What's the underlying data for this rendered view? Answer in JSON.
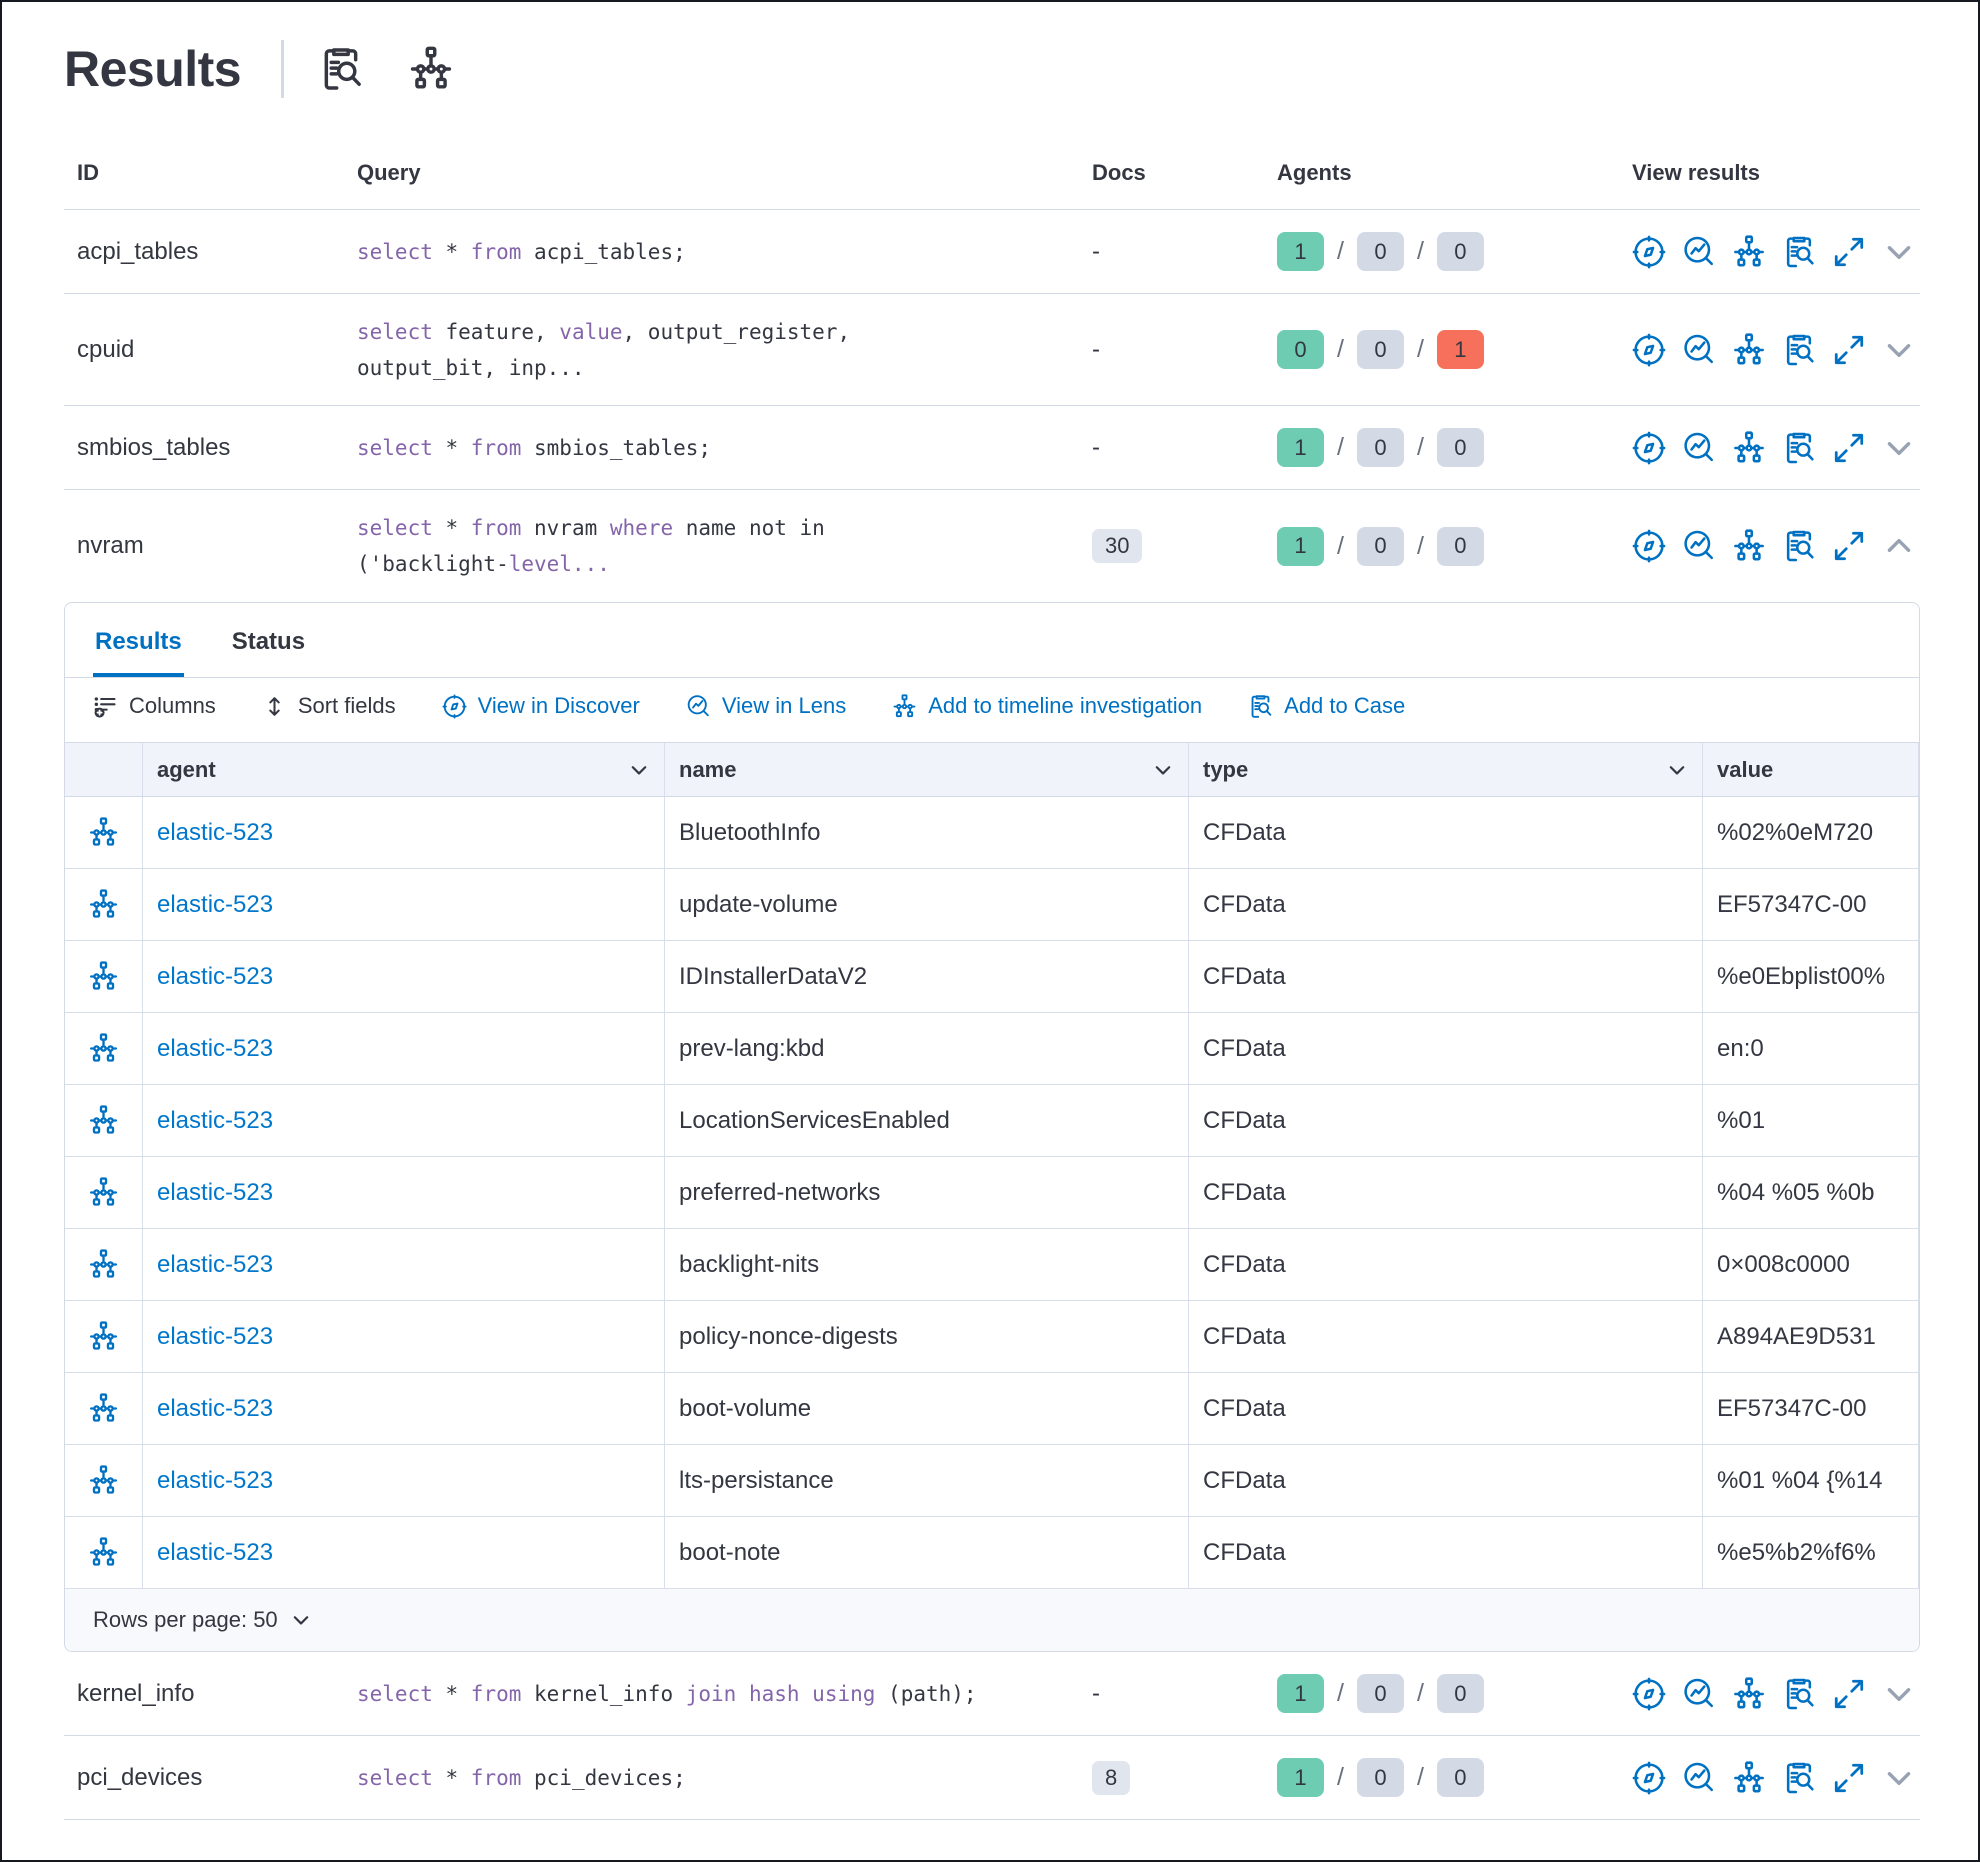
{
  "page": {
    "title": "Results"
  },
  "header_icons": {
    "inspect": "inspect-clipboard-icon",
    "timeline": "timeline-icon"
  },
  "results_table": {
    "columns": {
      "id": "ID",
      "query": "Query",
      "docs": "Docs",
      "agents": "Agents",
      "view_results": "View results"
    },
    "view_icons": [
      "discover-icon",
      "lens-icon",
      "timeline-icon",
      "add-to-case-icon",
      "expand-icon"
    ],
    "rows": [
      {
        "id": "acpi_tables",
        "two_line": false,
        "expanded": false,
        "docs": "-",
        "docs_badge": false,
        "query": [
          {
            "t": "select",
            "k": true
          },
          {
            "t": " * ",
            "k": false
          },
          {
            "t": "from",
            "k": true
          },
          {
            "t": " acpi_tables;",
            "k": false
          }
        ],
        "agents": [
          {
            "value": "1",
            "color": "green"
          },
          {
            "value": "0",
            "color": "gray"
          },
          {
            "value": "0",
            "color": "gray"
          }
        ]
      },
      {
        "id": "cpuid",
        "two_line": true,
        "expanded": false,
        "docs": "-",
        "docs_badge": false,
        "query": [
          {
            "t": "select",
            "k": true
          },
          {
            "t": " feature, ",
            "k": false
          },
          {
            "t": "value",
            "k": true
          },
          {
            "t": ", output_register,",
            "k": false
          },
          {
            "t": "\n",
            "k": false
          },
          {
            "t": "output_bit, inp...",
            "k": false
          }
        ],
        "agents": [
          {
            "value": "0",
            "color": "green"
          },
          {
            "value": "0",
            "color": "gray"
          },
          {
            "value": "1",
            "color": "red"
          }
        ]
      },
      {
        "id": "smbios_tables",
        "two_line": false,
        "expanded": false,
        "docs": "-",
        "docs_badge": false,
        "query": [
          {
            "t": "select",
            "k": true
          },
          {
            "t": " * ",
            "k": false
          },
          {
            "t": "from",
            "k": true
          },
          {
            "t": " smbios_tables;",
            "k": false
          }
        ],
        "agents": [
          {
            "value": "1",
            "color": "green"
          },
          {
            "value": "0",
            "color": "gray"
          },
          {
            "value": "0",
            "color": "gray"
          }
        ]
      },
      {
        "id": "nvram",
        "two_line": true,
        "expanded": true,
        "docs": "30",
        "docs_badge": true,
        "query": [
          {
            "t": "select",
            "k": true
          },
          {
            "t": " * ",
            "k": false
          },
          {
            "t": "from",
            "k": true
          },
          {
            "t": " nvram ",
            "k": false
          },
          {
            "t": "where",
            "k": true
          },
          {
            "t": " name not in",
            "k": false
          },
          {
            "t": "\n",
            "k": false
          },
          {
            "t": "('backlight-",
            "k": false
          },
          {
            "t": "level...",
            "k": true
          }
        ],
        "agents": [
          {
            "value": "1",
            "color": "green"
          },
          {
            "value": "0",
            "color": "gray"
          },
          {
            "value": "0",
            "color": "gray"
          }
        ]
      },
      {
        "id": "kernel_info",
        "two_line": false,
        "expanded": false,
        "docs": "-",
        "docs_badge": false,
        "query": [
          {
            "t": "select",
            "k": true
          },
          {
            "t": " * ",
            "k": false
          },
          {
            "t": "from",
            "k": true
          },
          {
            "t": " kernel_info ",
            "k": false
          },
          {
            "t": "join hash using",
            "k": true
          },
          {
            "t": " (path);",
            "k": false
          }
        ],
        "agents": [
          {
            "value": "1",
            "color": "green"
          },
          {
            "value": "0",
            "color": "gray"
          },
          {
            "value": "0",
            "color": "gray"
          }
        ]
      },
      {
        "id": "pci_devices",
        "two_line": false,
        "expanded": false,
        "docs": "8",
        "docs_badge": true,
        "query": [
          {
            "t": "select",
            "k": true
          },
          {
            "t": " * ",
            "k": false
          },
          {
            "t": "from",
            "k": true
          },
          {
            "t": " pci_devices;",
            "k": false
          }
        ],
        "agents": [
          {
            "value": "1",
            "color": "green"
          },
          {
            "value": "0",
            "color": "gray"
          },
          {
            "value": "0",
            "color": "gray"
          }
        ]
      }
    ]
  },
  "expanded_panel": {
    "tabs": [
      {
        "label": "Results",
        "active": true
      },
      {
        "label": "Status",
        "active": false
      }
    ],
    "toolbar": [
      {
        "label": "Columns",
        "icon": "columns-icon",
        "color": "dark"
      },
      {
        "label": "Sort fields",
        "icon": "sort-fields-icon",
        "color": "dark"
      },
      {
        "label": "View in Discover",
        "icon": "discover-icon",
        "color": "blue"
      },
      {
        "label": "View in Lens",
        "icon": "lens-icon",
        "color": "blue"
      },
      {
        "label": "Add to timeline investigation",
        "icon": "timeline-icon",
        "color": "blue"
      },
      {
        "label": "Add to Case",
        "icon": "add-to-case-icon",
        "color": "blue"
      }
    ],
    "grid": {
      "columns": [
        {
          "label": "agent",
          "sortable": true
        },
        {
          "label": "name",
          "sortable": true
        },
        {
          "label": "type",
          "sortable": true
        },
        {
          "label": "value",
          "sortable": false
        }
      ],
      "rows": [
        {
          "agent": "elastic-523",
          "name": "BluetoothInfo",
          "type": "CFData",
          "value": "%02%0eM720"
        },
        {
          "agent": "elastic-523",
          "name": "update-volume",
          "type": "CFData",
          "value": "EF57347C-00"
        },
        {
          "agent": "elastic-523",
          "name": "IDInstallerDataV2",
          "type": "CFData",
          "value": "%e0Ebplist00%"
        },
        {
          "agent": "elastic-523",
          "name": "prev-lang:kbd",
          "type": "CFData",
          "value": "en:0"
        },
        {
          "agent": "elastic-523",
          "name": "LocationServicesEnabled",
          "type": "CFData",
          "value": "%01"
        },
        {
          "agent": "elastic-523",
          "name": "preferred-networks",
          "type": "CFData",
          "value": "%04 %05 %0b"
        },
        {
          "agent": "elastic-523",
          "name": "backlight-nits",
          "type": "CFData",
          "value": "0×008c0000"
        },
        {
          "agent": "elastic-523",
          "name": "policy-nonce-digests",
          "type": "CFData",
          "value": "A894AE9D531"
        },
        {
          "agent": "elastic-523",
          "name": "boot-volume",
          "type": "CFData",
          "value": "EF57347C-00"
        },
        {
          "agent": "elastic-523",
          "name": "lts-persistance",
          "type": "CFData",
          "value": "%01 %04 {%14"
        },
        {
          "agent": "elastic-523",
          "name": "boot-note",
          "type": "CFData",
          "value": "%e5%b2%f6%"
        }
      ]
    },
    "footer": {
      "rows_per_page": "Rows per page: 50"
    }
  }
}
